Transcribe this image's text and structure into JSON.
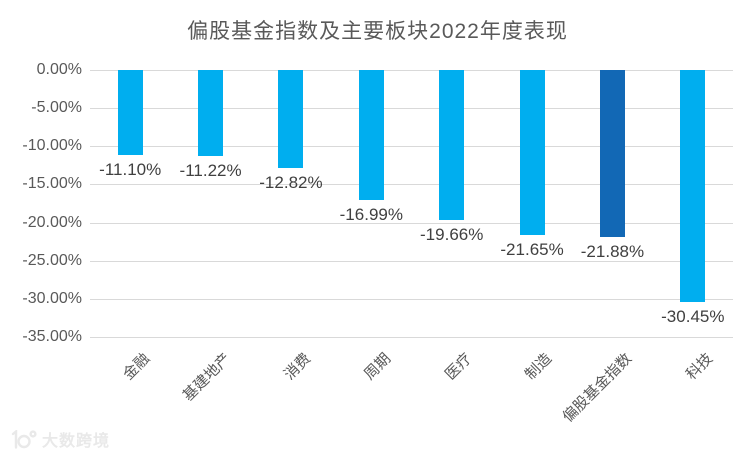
{
  "title": "偏股基金指数及主要板块2022年度表现",
  "chart_data": {
    "type": "bar",
    "title": "偏股基金指数及主要板块2022年度表现",
    "categories": [
      "金融",
      "基建地产",
      "消费",
      "周期",
      "医疗",
      "制造",
      "偏股基金指数",
      "科技"
    ],
    "values": [
      -11.1,
      -11.22,
      -12.82,
      -16.99,
      -19.66,
      -21.65,
      -21.88,
      -30.45
    ],
    "labels": [
      "-11.10%",
      "-11.22%",
      "-12.82%",
      "-16.99%",
      "-19.66%",
      "-21.65%",
      "-21.88%",
      "-30.45%"
    ],
    "highlight_index": 6,
    "bar_color": "#00aeef",
    "highlight_color": "#1268b5",
    "ylim": [
      -35,
      0
    ],
    "ytick_step": 5,
    "ytick_labels": [
      "0.00%",
      "-5.00%",
      "-10.00%",
      "-15.00%",
      "-20.00%",
      "-25.00%",
      "-30.00%",
      "-35.00%"
    ],
    "xlabel": "",
    "ylabel": "",
    "grid": true,
    "legend": "none"
  },
  "watermark": {
    "logo": "dashu-kuajing-logo",
    "text": "大数跨境"
  }
}
